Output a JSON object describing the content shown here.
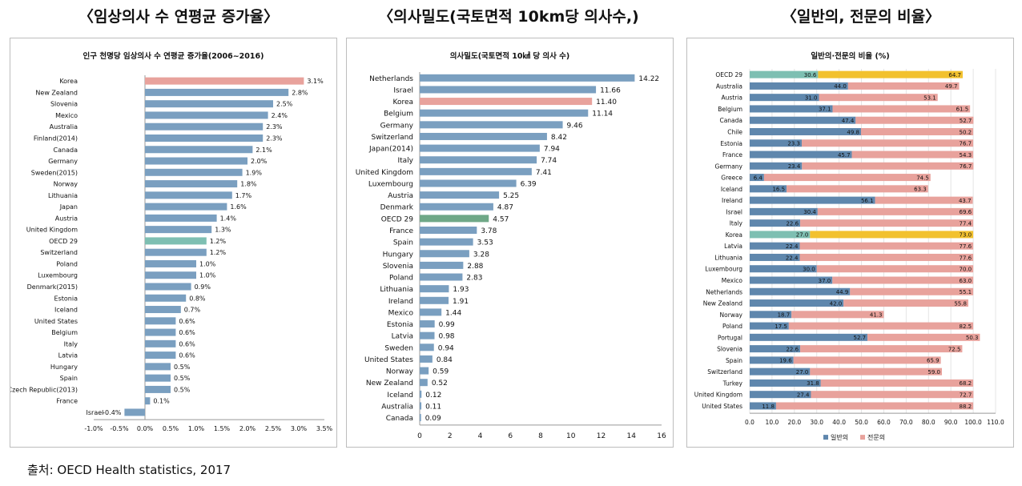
{
  "headings": {
    "growth": "〈임상의사 수 연평균 증가율〉",
    "density": "〈의사밀도(국토면적 10km당 의사수,)",
    "ratio": "〈일반의, 전문의 비율〉"
  },
  "source": "출처: OECD Health statistics, 2017",
  "colors": {
    "blue": "#7a9fc0",
    "salmon": "#e8a29c",
    "teal": "#7ebfb2",
    "yellow": "#f2c12e"
  },
  "chart_data": [
    {
      "type": "bar",
      "orientation": "horizontal",
      "title": "인구 천명당 임상의사 수 연평균 증가율(2006~2016)",
      "categories": [
        "Korea",
        "New Zealand",
        "Slovenia",
        "Mexico",
        "Australia",
        "Finland(2014)",
        "Canada",
        "Germany",
        "Sweden(2015)",
        "Norway",
        "Lithuania",
        "Japan",
        "Austria",
        "United Kingdom",
        "OECD 29",
        "Switzerland",
        "Poland",
        "Luxembourg",
        "Denmark(2015)",
        "Estonia",
        "Iceland",
        "United States",
        "Belgium",
        "Italy",
        "Latvia",
        "Hungary",
        "Spain",
        "Czech Republic(2013)",
        "France",
        "Israel"
      ],
      "values": [
        3.1,
        2.8,
        2.5,
        2.4,
        2.3,
        2.3,
        2.1,
        2.0,
        1.9,
        1.8,
        1.7,
        1.6,
        1.4,
        1.3,
        1.2,
        1.2,
        1.0,
        1.0,
        0.9,
        0.8,
        0.7,
        0.6,
        0.6,
        0.6,
        0.6,
        0.5,
        0.5,
        0.5,
        0.1,
        -0.4
      ],
      "labels": [
        "3.1%",
        "2.8%",
        "2.5%",
        "2.4%",
        "2.3%",
        "2.3%",
        "2.1%",
        "2.0%",
        "1.9%",
        "1.8%",
        "1.7%",
        "1.6%",
        "1.4%",
        "1.3%",
        "1.2%",
        "1.2%",
        "1.0%",
        "1.0%",
        "0.9%",
        "0.8%",
        "0.7%",
        "0.6%",
        "0.6%",
        "0.6%",
        "0.6%",
        "0.5%",
        "0.5%",
        "0.5%",
        "0.1%",
        "-0.4%"
      ],
      "highlight": {
        "Korea": "salmon",
        "OECD 29": "teal"
      },
      "xlim": [
        -1.0,
        3.5
      ],
      "xticks": [
        -1.0,
        -0.5,
        0.0,
        0.5,
        1.0,
        1.5,
        2.0,
        2.5,
        3.0,
        3.5
      ],
      "xtick_labels": [
        "-1.0%",
        "-0.5%",
        "0.0%",
        "0.5%",
        "1.0%",
        "1.5%",
        "2.0%",
        "2.5%",
        "3.0%",
        "3.5%"
      ]
    },
    {
      "type": "bar",
      "orientation": "horizontal",
      "title": "의사밀도(국토면적 10㎢ 당 의사 수)",
      "categories": [
        "Netherlands",
        "Israel",
        "Korea",
        "Belgium",
        "Germany",
        "Switzerland",
        "Japan(2014)",
        "Italy",
        "United Kingdom",
        "Luxembourg",
        "Austria",
        "Denmark",
        "OECD 29",
        "France",
        "Spain",
        "Hungary",
        "Slovenia",
        "Poland",
        "Lithuania",
        "Ireland",
        "Mexico",
        "Estonia",
        "Latvia",
        "Sweden",
        "United States",
        "Norway",
        "New Zealand",
        "Iceland",
        "Australia",
        "Canada"
      ],
      "values": [
        14.22,
        11.66,
        11.4,
        11.14,
        9.46,
        8.42,
        7.94,
        7.74,
        7.41,
        6.39,
        5.25,
        4.87,
        4.57,
        3.78,
        3.53,
        3.28,
        2.88,
        2.83,
        1.93,
        1.91,
        1.44,
        0.99,
        0.98,
        0.94,
        0.84,
        0.59,
        0.52,
        0.12,
        0.11,
        0.09
      ],
      "labels": [
        "14.22",
        "11.66",
        "11.40",
        "11.14",
        "9.46",
        "8.42",
        "7.94",
        "7.74",
        "7.41",
        "6.39",
        "5.25",
        "4.87",
        "4.57",
        "3.78",
        "3.53",
        "3.28",
        "2.88",
        "2.83",
        "1.93",
        "1.91",
        "1.44",
        "0.99",
        "0.98",
        "0.94",
        "0.84",
        "0.59",
        "0.52",
        "0.12",
        "0.11",
        "0.09"
      ],
      "highlight": {
        "Korea": "salmon",
        "OECD 29": "green"
      },
      "xlim": [
        0,
        16
      ],
      "xticks": [
        0,
        2,
        4,
        6,
        8,
        10,
        12,
        14,
        16
      ],
      "xtick_labels": [
        "0",
        "2",
        "4",
        "6",
        "8",
        "10",
        "12",
        "14",
        "16"
      ]
    },
    {
      "type": "bar",
      "orientation": "horizontal",
      "stacked": true,
      "title": "일반의·전문의 비율 (%)",
      "categories": [
        "OECD 29",
        "Australia",
        "Austria",
        "Belgium",
        "Canada",
        "Chile",
        "Estonia",
        "France",
        "Germany",
        "Greece",
        "Iceland",
        "Ireland",
        "Israel",
        "Italy",
        "Korea",
        "Latvia",
        "Lithuania",
        "Luxembourg",
        "Mexico",
        "Netherlands",
        "New Zealand",
        "Norway",
        "Poland",
        "Portugal",
        "Slovenia",
        "Spain",
        "Switzerland",
        "Turkey",
        "United Kingdom",
        "United States"
      ],
      "series": [
        {
          "name": "일반의",
          "values": [
            30.6,
            44.0,
            31.0,
            37.1,
            47.4,
            49.8,
            23.3,
            45.7,
            23.4,
            6.4,
            16.5,
            56.1,
            30.4,
            22.6,
            27.0,
            22.4,
            22.4,
            30.0,
            37.0,
            44.9,
            42.0,
            18.7,
            17.5,
            52.7,
            22.6,
            19.6,
            27.0,
            31.8,
            27.4,
            11.8
          ]
        },
        {
          "name": "전문의",
          "values": [
            64.7,
            49.7,
            53.1,
            61.5,
            52.7,
            50.2,
            76.7,
            54.3,
            76.7,
            74.5,
            63.3,
            43.7,
            69.6,
            77.4,
            73.0,
            77.6,
            77.6,
            70.0,
            63.0,
            55.1,
            55.8,
            41.3,
            82.5,
            50.3,
            72.5,
            65.9,
            59.0,
            68.2,
            72.7,
            88.2
          ]
        }
      ],
      "gp_labels": [
        "30.6",
        "44.0",
        "31.0",
        "37.1",
        "47.4",
        "49.8",
        "23.3",
        "45.7",
        "23.4",
        "6.4",
        "16.5",
        "56.1",
        "30.4",
        "22.6",
        "27.0",
        "22.4",
        "22.4",
        "30.0",
        "37.0",
        "44.9",
        "42.0",
        "18.7",
        "17.5",
        "52.7",
        "22.6",
        "19.6",
        "27.0",
        "31.8",
        "27.4",
        "11.8"
      ],
      "sp_labels": [
        "64.7",
        "49.7",
        "53.1",
        "61.5",
        "52.7",
        "50.2",
        "76.7",
        "54.3",
        "76.7",
        "74.5",
        "63.3",
        "43.7",
        "69.6",
        "77.4",
        "73.0",
        "77.6",
        "77.6",
        "70.0",
        "63.0",
        "55.1",
        "55.8",
        "41.3",
        "82.5",
        "50.3",
        "72.5",
        "65.9",
        "59.0",
        "68.2",
        "72.7",
        "88.2"
      ],
      "highlight": [
        "OECD 29",
        "Korea"
      ],
      "xlim": [
        0,
        110
      ],
      "xticks": [
        0,
        10,
        20,
        30,
        40,
        50,
        60,
        70,
        80,
        90,
        100,
        110
      ],
      "xtick_labels": [
        "0.0",
        "10.0",
        "20.0",
        "30.0",
        "40.0",
        "50.0",
        "60.0",
        "70.0",
        "80.0",
        "90.0",
        "100.0",
        "110.0"
      ],
      "legend": [
        "일반의",
        "전문의"
      ],
      "legend_position": "bottom"
    }
  ]
}
